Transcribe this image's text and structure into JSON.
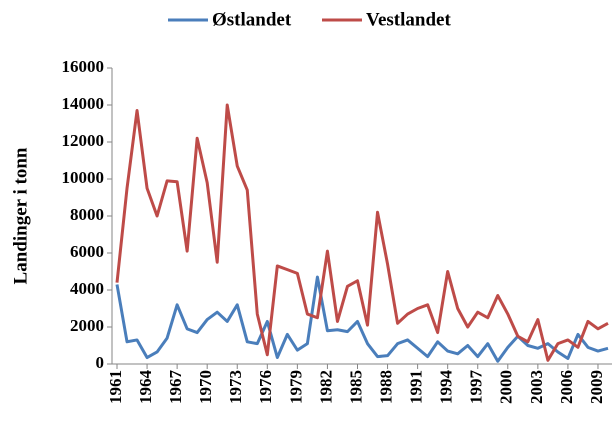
{
  "chart_data": {
    "type": "line",
    "y_label": "Landinger i tonn",
    "x": [
      1961,
      1962,
      1963,
      1964,
      1965,
      1966,
      1967,
      1968,
      1969,
      1970,
      1971,
      1972,
      1973,
      1974,
      1975,
      1976,
      1977,
      1978,
      1979,
      1980,
      1981,
      1982,
      1983,
      1984,
      1985,
      1986,
      1987,
      1988,
      1989,
      1990,
      1991,
      1992,
      1993,
      1994,
      1995,
      1996,
      1997,
      1998,
      1999,
      2000,
      2001,
      2002,
      2003,
      2004,
      2005,
      2006,
      2007,
      2008,
      2009,
      2010
    ],
    "series": [
      {
        "name": "Østlandet",
        "color": "#4a7ebb",
        "values": [
          4300,
          1200,
          1300,
          350,
          650,
          1400,
          3200,
          1900,
          1700,
          2400,
          2800,
          2300,
          3200,
          1200,
          1100,
          2300,
          350,
          1600,
          750,
          1100,
          4700,
          1800,
          1850,
          1750,
          2300,
          1100,
          400,
          450,
          1100,
          1300,
          850,
          400,
          1200,
          700,
          550,
          1000,
          400,
          1100,
          150,
          900,
          1500,
          1000,
          850,
          1100,
          650,
          300,
          1600,
          900,
          700,
          850
        ]
      },
      {
        "name": "Vestlandet",
        "color": "#be4b48",
        "values": [
          4400,
          9500,
          13700,
          9500,
          8000,
          9900,
          9850,
          6100,
          12200,
          9800,
          5500,
          14000,
          10700,
          9400,
          2700,
          500,
          5300,
          5100,
          4900,
          2700,
          2500,
          6100,
          2300,
          4200,
          4500,
          2100,
          8200,
          5400,
          2200,
          2700,
          3000,
          3200,
          1700,
          5000,
          3000,
          2000,
          2800,
          2500,
          3700,
          2700,
          1500,
          1200,
          2400,
          200,
          1100,
          1300,
          900,
          2300,
          1900,
          2200
        ]
      }
    ],
    "xlim": [
      1961,
      2010
    ],
    "xticks": [
      1961,
      1964,
      1967,
      1970,
      1973,
      1976,
      1979,
      1982,
      1985,
      1988,
      1991,
      1994,
      1997,
      2000,
      2003,
      2006,
      2009
    ],
    "ylim": [
      0,
      16000
    ],
    "yticks": [
      0,
      2000,
      4000,
      6000,
      8000,
      10000,
      12000,
      14000,
      16000
    ],
    "grid": false,
    "legend": "top"
  }
}
